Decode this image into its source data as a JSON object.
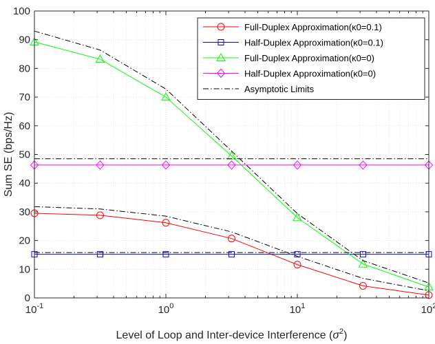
{
  "chart_data": {
    "type": "line",
    "xscale": "log",
    "xlim": [
      0.1,
      100
    ],
    "ylim": [
      0,
      100
    ],
    "x_ticks": [
      {
        "value": 0.1,
        "base": "10",
        "exp": "-1"
      },
      {
        "value": 1,
        "base": "10",
        "exp": "0"
      },
      {
        "value": 10,
        "base": "10",
        "exp": "1"
      },
      {
        "value": 100,
        "base": "10",
        "exp": "2"
      }
    ],
    "y_ticks": [
      "0",
      "10",
      "20",
      "30",
      "40",
      "50",
      "60",
      "70",
      "80",
      "90",
      "100"
    ],
    "xlabel": {
      "text": "Level of Loop and Inter-device Interference (",
      "sym": "σ",
      "exp": "2",
      "close": ")"
    },
    "ylabel": "Sum SE (bps/Hz)",
    "grid": true,
    "legend_position": "top-right",
    "series": [
      {
        "name": "Full-Duplex Approximation(κ0=0.1)",
        "color": "#ff0000",
        "marker": "circle",
        "line": "solid",
        "x": [
          0.1,
          0.316,
          1,
          3.16,
          10,
          31.6,
          100
        ],
        "y": [
          29.5,
          28.8,
          26.2,
          20.7,
          11.6,
          4.2,
          1.0
        ]
      },
      {
        "name": "Half-Duplex Approximation(κ0=0.1)",
        "color": "#0000ff",
        "marker": "square",
        "line": "solid",
        "x": [
          0.1,
          0.316,
          1,
          3.16,
          10,
          31.6,
          100
        ],
        "y": [
          15.2,
          15.2,
          15.2,
          15.2,
          15.2,
          15.2,
          15.2
        ]
      },
      {
        "name": "Full-Duplex Approximation(κ0=0)",
        "color": "#00ff00",
        "marker": "triangle",
        "line": "solid",
        "x": [
          0.1,
          0.316,
          1,
          3.16,
          10,
          31.6,
          100
        ],
        "y": [
          89.2,
          83.2,
          70.0,
          49.5,
          28.0,
          11.8,
          3.8
        ]
      },
      {
        "name": "Half-Duplex Approximation(κ0=0)",
        "color": "#ff00ff",
        "marker": "diamond",
        "line": "solid",
        "x": [
          0.1,
          0.316,
          1,
          3.16,
          10,
          31.6,
          100
        ],
        "y": [
          46.3,
          46.3,
          46.3,
          46.3,
          46.3,
          46.3,
          46.3
        ]
      },
      {
        "name": "Asymptotic Limits",
        "color": "#000000",
        "marker": "none",
        "line": "dashdot",
        "x": [
          0.1,
          0.316,
          1,
          3.16,
          10,
          31.6,
          100
        ],
        "y": [
          93.0,
          86.4,
          72.8,
          51.2,
          29.4,
          13.0,
          5.2
        ]
      },
      {
        "name": "",
        "color": "#000000",
        "marker": "none",
        "line": "dashdot",
        "legend": false,
        "x": [
          0.1,
          0.316,
          1,
          3.16,
          10,
          31.6,
          100
        ],
        "y": [
          31.8,
          31.0,
          28.5,
          23.0,
          14.5,
          6.8,
          2.5
        ]
      },
      {
        "name": "",
        "color": "#000000",
        "marker": "none",
        "line": "dashdot",
        "legend": false,
        "x": [
          0.1,
          100
        ],
        "y": [
          15.8,
          15.8
        ]
      },
      {
        "name": "",
        "color": "#000000",
        "marker": "none",
        "line": "dashdot",
        "legend": false,
        "x": [
          0.1,
          100
        ],
        "y": [
          48.5,
          48.5
        ]
      }
    ]
  }
}
